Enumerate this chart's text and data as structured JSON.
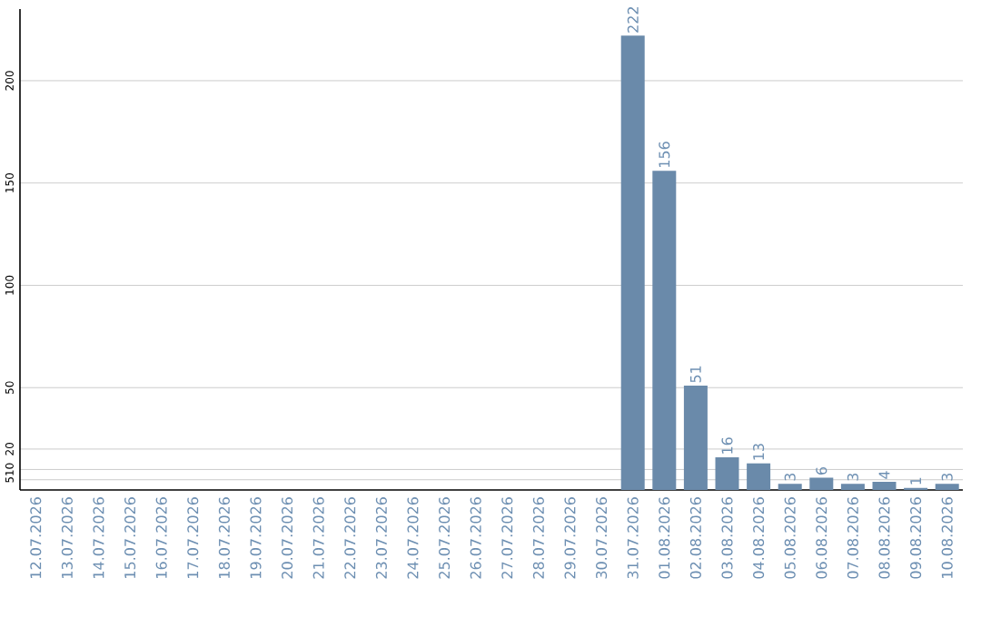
{
  "chart_data": {
    "type": "bar",
    "categories": [
      "12.07.2026",
      "13.07.2026",
      "14.07.2026",
      "15.07.2026",
      "16.07.2026",
      "17.07.2026",
      "18.07.2026",
      "19.07.2026",
      "20.07.2026",
      "21.07.2026",
      "22.07.2026",
      "23.07.2026",
      "24.07.2026",
      "25.07.2026",
      "26.07.2026",
      "27.07.2026",
      "28.07.2026",
      "29.07.2026",
      "30.07.2026",
      "31.07.2026",
      "01.08.2026",
      "02.08.2026",
      "03.08.2026",
      "04.08.2026",
      "05.08.2026",
      "06.08.2026",
      "07.08.2026",
      "08.08.2026",
      "09.08.2026",
      "10.08.2026"
    ],
    "values": [
      0,
      0,
      0,
      0,
      0,
      0,
      0,
      0,
      0,
      0,
      0,
      0,
      0,
      0,
      0,
      0,
      0,
      0,
      0,
      222,
      156,
      51,
      16,
      13,
      3,
      6,
      3,
      4,
      1,
      3
    ],
    "value_labels": [
      null,
      null,
      null,
      null,
      null,
      null,
      null,
      null,
      null,
      null,
      null,
      null,
      null,
      null,
      null,
      null,
      null,
      null,
      null,
      "222",
      "156",
      "51",
      "16",
      "13",
      "3",
      "6",
      "3",
      "4",
      "1",
      "3"
    ],
    "color": "#6a8aaa",
    "ylim": [
      0,
      235
    ],
    "yticks": [
      5,
      10,
      20,
      50,
      100,
      150,
      200
    ],
    "grid": "y"
  }
}
